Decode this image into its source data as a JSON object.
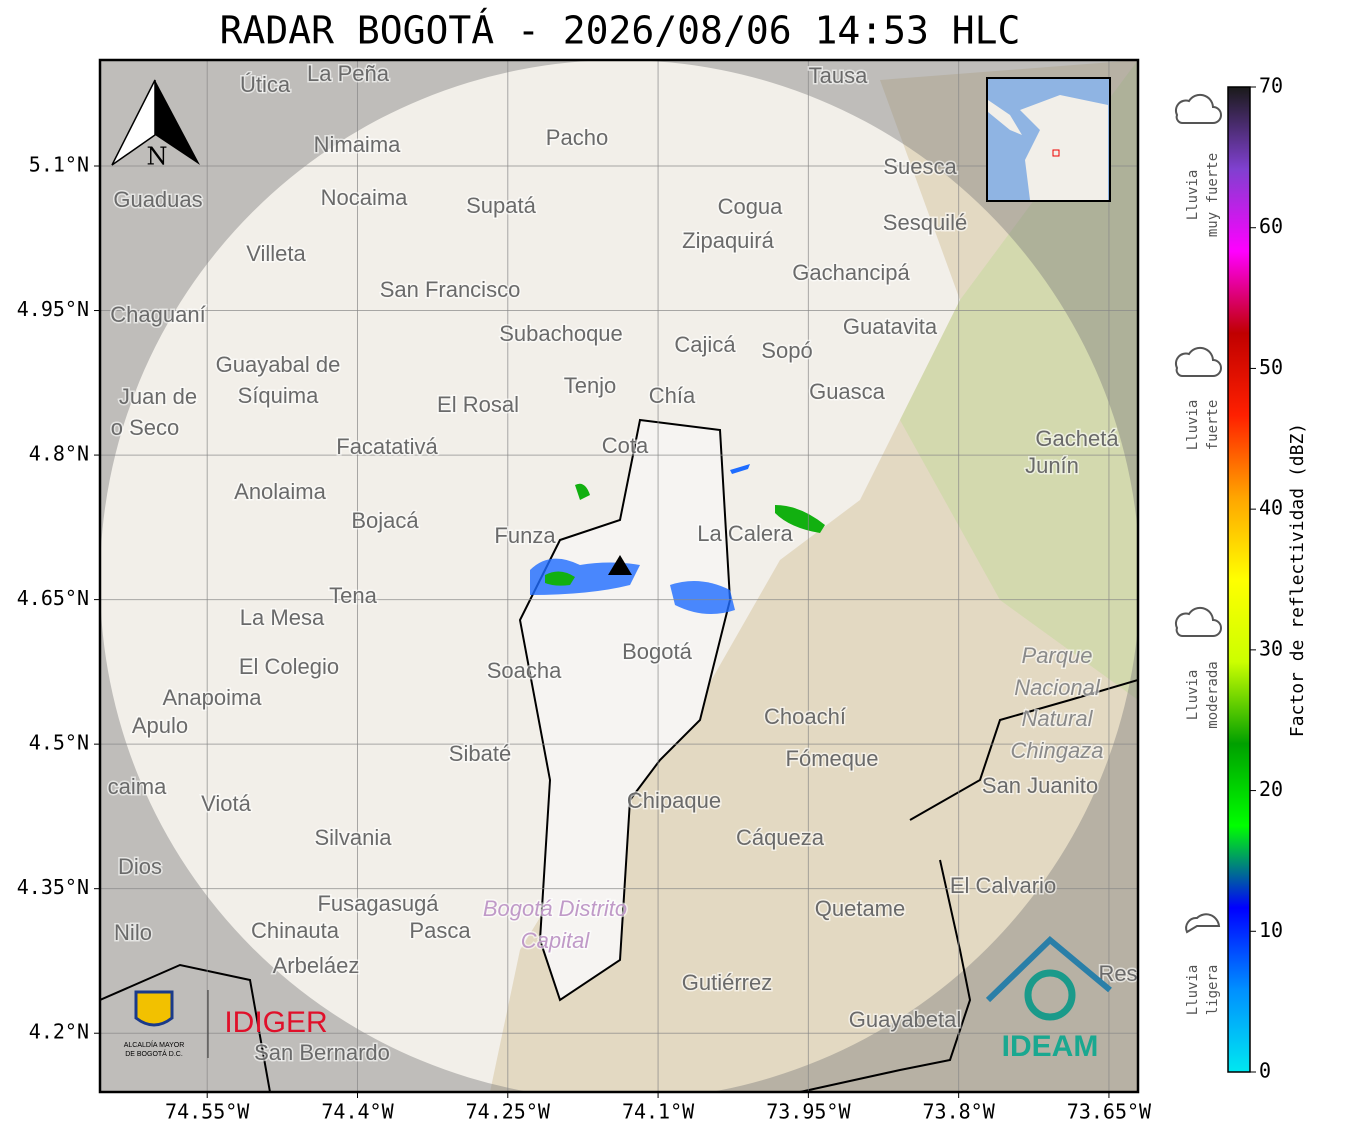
{
  "title": "RADAR BOGOTÁ - 2026/08/06 14:53 HLC",
  "map": {
    "xlim": [
      -74.657,
      -73.621
    ],
    "ylim": [
      4.139,
      5.21
    ],
    "xticks": [
      {
        "value": -74.55,
        "label": "74.55°W"
      },
      {
        "value": -74.4,
        "label": "74.4°W"
      },
      {
        "value": -74.25,
        "label": "74.25°W"
      },
      {
        "value": -74.1,
        "label": "74.1°W"
      },
      {
        "value": -73.95,
        "label": "73.95°W"
      },
      {
        "value": -73.8,
        "label": "73.8°W"
      },
      {
        "value": -73.65,
        "label": "73.65°W"
      }
    ],
    "yticks": [
      {
        "value": 4.2,
        "label": "4.2°N"
      },
      {
        "value": 4.35,
        "label": "4.35°N"
      },
      {
        "value": 4.5,
        "label": "4.5°N"
      },
      {
        "value": 4.65,
        "label": "4.65°N"
      },
      {
        "value": 4.8,
        "label": "4.8°N"
      },
      {
        "value": 4.95,
        "label": "4.95°N"
      },
      {
        "value": 5.1,
        "label": "5.1°N"
      }
    ],
    "grid": true,
    "north": "N",
    "places": [
      "La Peña",
      "Útica",
      "Tausa",
      "Pacho",
      "Nimaima",
      "Guaduas",
      "Nocaima",
      "Supatá",
      "Cogua",
      "Suesca",
      "Sesquilé",
      "Zipaquirá",
      "Villeta",
      "Gachancipá",
      "San Francisco",
      "Chaguaní",
      "Guatavita",
      "Subachoque",
      "Cajicá",
      "Sopó",
      "Guayabal de",
      "Síquima",
      "Juan de",
      "o Seco",
      "Tenjo",
      "Chía",
      "Guasca",
      "El Rosal",
      "Facatativá",
      "Cota",
      "Gachetá",
      "Junín",
      "Anolaima",
      "Bojacá",
      "Funza",
      "La Calera",
      "Tena",
      "La Mesa",
      "Bogotá",
      "Parque",
      "Nacional",
      "Natural",
      "Chingaza",
      "El Colegio",
      "Soacha",
      "Anapoima",
      "Apulo",
      "Choachí",
      "Sibaté",
      "Fómeque",
      "San Juanito",
      "caima",
      "Viotá",
      "Chipaque",
      "Cáqueza",
      "Silvania",
      "Dios",
      "El Calvario",
      "Fusagasugá",
      "Bogotá Distrito",
      "Capital",
      "Quetame",
      "Nilo",
      "Chinauta",
      "Pasca",
      "Arbeláez",
      "Res",
      "Gutiérrez",
      "Guayabetal",
      "San Bernardo"
    ]
  },
  "colorbar": {
    "label": "Factor de reflectividad (dBZ)",
    "lim": [
      0,
      70
    ],
    "ticks": [
      0,
      10,
      20,
      30,
      40,
      50,
      60,
      70
    ],
    "colors": [
      "#00e8f0",
      "#0090ff",
      "#0000ff",
      "#00ff00",
      "#00a000",
      "#ccff00",
      "#ffff00",
      "#ffa500",
      "#ff2000",
      "#c00000",
      "#ff00ff",
      "#8040d0",
      "#1a1a1a"
    ]
  },
  "rain_levels": [
    [
      "Lluvia",
      "muy fuerte"
    ],
    [
      "Lluvia",
      "fuerte"
    ],
    [
      "Lluvia",
      "moderada"
    ],
    [
      "Lluvia",
      "ligera"
    ]
  ],
  "logos": {
    "alcaldia": [
      "ALCALDÍA MAYOR",
      "DE BOGOTÁ D.C."
    ],
    "idiger": "IDIGER",
    "ideam": "IDEAM"
  }
}
